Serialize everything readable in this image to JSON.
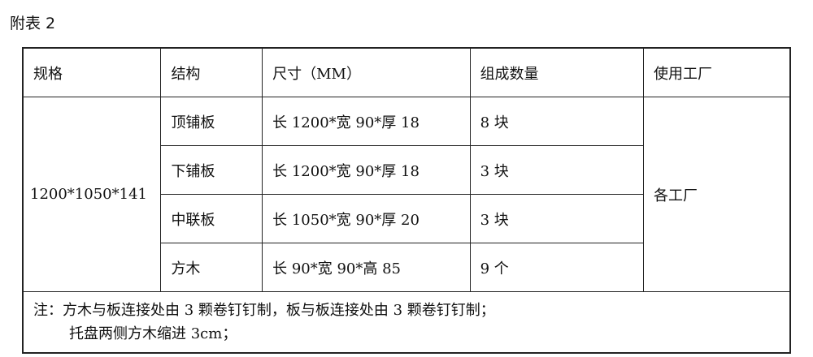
{
  "title": "附表 2",
  "headers": [
    "规格",
    "结构",
    "尺寸（MM）",
    "组成数量",
    "使用工厂"
  ],
  "spec": "1200*1050*141",
  "factory": "各工厂",
  "rows": [
    {
      "structure": "顶铺板",
      "size": "长 1200*宽 90*厚 18",
      "qty": "8 块"
    },
    {
      "structure": "下铺板",
      "size": "长 1200*宽 90*厚 18",
      "qty": "3 块"
    },
    {
      "structure": "中联板",
      "size": "长 1050*宽 90*厚 20",
      "qty": "3 块"
    },
    {
      "structure": "方木",
      "size": "长 90*宽 90*高 85",
      "qty": "9 个"
    }
  ],
  "note": {
    "line1": "注：方木与板连接处由 3 颗卷钉钉制，板与板连接处由 3 颗卷钉钉制；",
    "line2": "托盘两侧方木缩进 3cm；"
  }
}
